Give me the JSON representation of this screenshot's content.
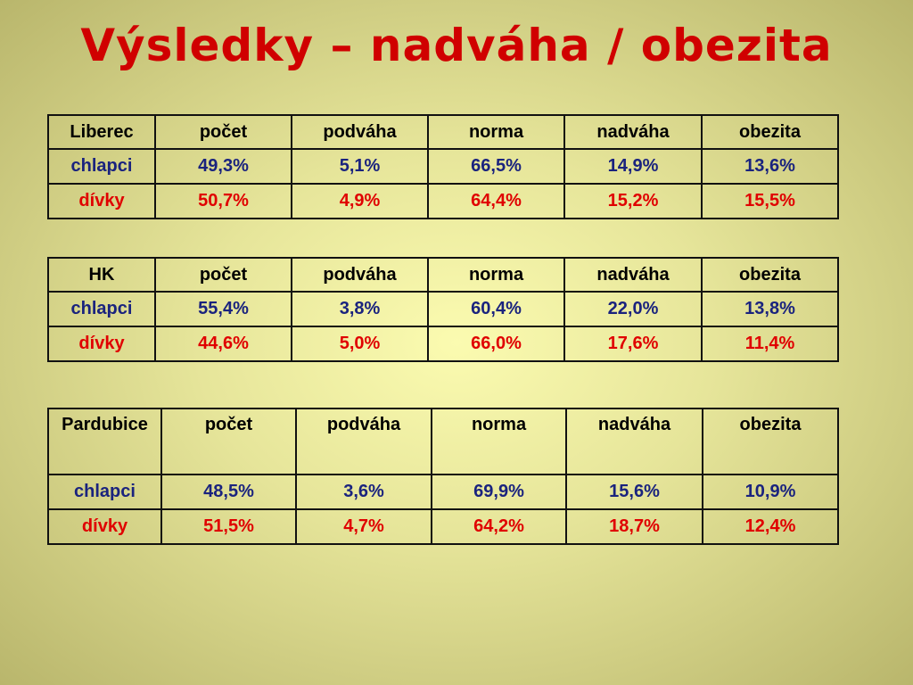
{
  "title": "Výsledky – nadváha / obezita",
  "tables": [
    {
      "header": [
        "Liberec",
        "počet",
        "podváha",
        "norma",
        "nadváha",
        "obezita"
      ],
      "rows": [
        [
          "chlapci",
          "49,3%",
          "5,1%",
          "66,5%",
          "14,9%",
          "13,6%"
        ],
        [
          "dívky",
          "50,7%",
          "4,9%",
          "64,4%",
          "15,2%",
          "15,5%"
        ]
      ]
    },
    {
      "header": [
        "HK",
        "počet",
        "podváha",
        "norma",
        "nadváha",
        "obezita"
      ],
      "rows": [
        [
          "chlapci",
          "55,4%",
          "3,8%",
          "60,4%",
          "22,0%",
          "13,8%"
        ],
        [
          "dívky",
          "44,6%",
          "5,0%",
          "66,0%",
          "17,6%",
          "11,4%"
        ]
      ]
    },
    {
      "header": [
        "Pardubice",
        "počet",
        "podváha",
        "norma",
        "nadváha",
        "obezita"
      ],
      "rows": [
        [
          "chlapci",
          "48,5%",
          "3,6%",
          "69,9%",
          "15,6%",
          "10,9%"
        ],
        [
          "dívky",
          "51,5%",
          "4,7%",
          "64,2%",
          "18,7%",
          "12,4%"
        ]
      ]
    }
  ]
}
